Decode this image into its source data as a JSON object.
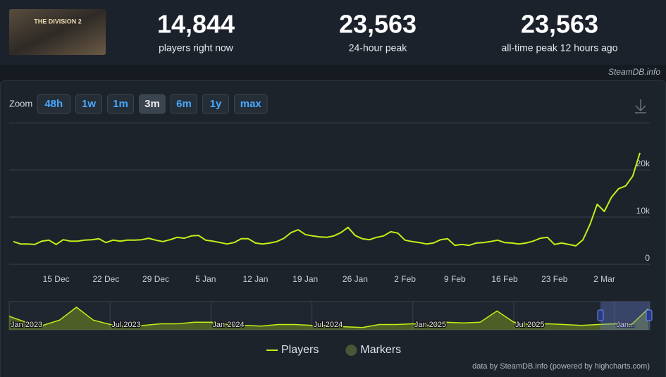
{
  "header": {
    "thumbnail_text": "THE DIVISION 2",
    "stats": [
      {
        "value": "14,844",
        "label": "players right now"
      },
      {
        "value": "23,563",
        "label": "24-hour peak"
      },
      {
        "value": "23,563",
        "label": "all-time peak 12 hours ago"
      }
    ],
    "source": "SteamDB.info"
  },
  "zoom": {
    "label": "Zoom",
    "buttons": [
      "48h",
      "1w",
      "1m",
      "3m",
      "6m",
      "1y",
      "max"
    ],
    "active": "3m"
  },
  "credits": "data by SteamDB.info (powered by highcharts.com)",
  "chart_data": [
    {
      "type": "line",
      "categories": [
        null,
        null,
        null,
        null,
        null,
        null,
        "15 Dec",
        null,
        null,
        null,
        null,
        null,
        null,
        "22 Dec",
        null,
        null,
        null,
        null,
        null,
        null,
        "29 Dec",
        null,
        null,
        null,
        null,
        null,
        null,
        "5 Jan",
        null,
        null,
        null,
        null,
        null,
        null,
        "12 Jan",
        null,
        null,
        null,
        null,
        null,
        null,
        "19 Jan",
        null,
        null,
        null,
        null,
        null,
        null,
        "26 Jan",
        null,
        null,
        null,
        null,
        null,
        null,
        "2 Feb",
        null,
        null,
        null,
        null,
        null,
        null,
        "9 Feb",
        null,
        null,
        null,
        null,
        null,
        null,
        "16 Feb",
        null,
        null,
        null,
        null,
        null,
        null,
        "23 Feb",
        null,
        null,
        null,
        null,
        null,
        null,
        "2 Mar",
        null,
        null,
        null,
        null,
        null
      ],
      "series": [
        {
          "name": "Players",
          "color": "#c4ef17",
          "values": [
            4800,
            4300,
            4300,
            4200,
            4900,
            5100,
            4200,
            5200,
            4900,
            4900,
            5100,
            5200,
            5400,
            4600,
            5100,
            4900,
            5100,
            5100,
            5200,
            5500,
            5100,
            4800,
            5200,
            5700,
            5500,
            6000,
            6100,
            5100,
            4900,
            4600,
            4300,
            4600,
            5400,
            5400,
            4500,
            4300,
            4500,
            4800,
            5500,
            6700,
            7300,
            6300,
            6000,
            5800,
            5700,
            6000,
            6700,
            7800,
            6100,
            5400,
            5200,
            5700,
            6000,
            6900,
            6600,
            5100,
            4800,
            4600,
            4300,
            4500,
            5200,
            5400,
            4000,
            4200,
            4000,
            4500,
            4600,
            4800,
            5100,
            4600,
            4500,
            4300,
            4500,
            4900,
            5500,
            5700,
            4200,
            4500,
            4200,
            3900,
            5200,
            8500,
            12700,
            11200,
            14200,
            16000,
            16600,
            18700,
            23600
          ]
        }
      ],
      "extra_legend_entries": [
        {
          "name": "Markers",
          "color": "#4a5638"
        }
      ],
      "ylim": [
        0,
        30000
      ],
      "yticks": [
        0,
        {
          "value": 10000,
          "label": "10k"
        },
        {
          "value": 20000,
          "label": "20k"
        }
      ],
      "grid": true
    },
    {
      "type": "area",
      "categories": [
        "Jan 2023",
        null,
        null,
        null,
        null,
        null,
        "Jul 2023",
        null,
        null,
        null,
        null,
        null,
        "Jan 2024",
        null,
        null,
        null,
        null,
        null,
        "Jul 2024",
        null,
        null,
        null,
        null,
        null,
        "Jan 2025",
        null,
        null,
        null,
        null,
        null,
        "Jul 2025",
        null,
        null,
        null,
        null,
        null,
        "Jan...",
        null,
        null
      ],
      "series": [
        {
          "name": "Players",
          "color": "#c4ef17",
          "values": [
            15100,
            8400,
            5000,
            10900,
            25200,
            10900,
            5900,
            3400,
            5000,
            6700,
            6700,
            8400,
            8400,
            5900,
            5000,
            4200,
            5900,
            5900,
            5000,
            5000,
            3400,
            2500,
            5900,
            5900,
            6700,
            5000,
            8400,
            7600,
            8400,
            21000,
            8400,
            5900,
            6700,
            5900,
            5000,
            5900,
            6700,
            5900,
            23600
          ]
        }
      ]
    }
  ]
}
